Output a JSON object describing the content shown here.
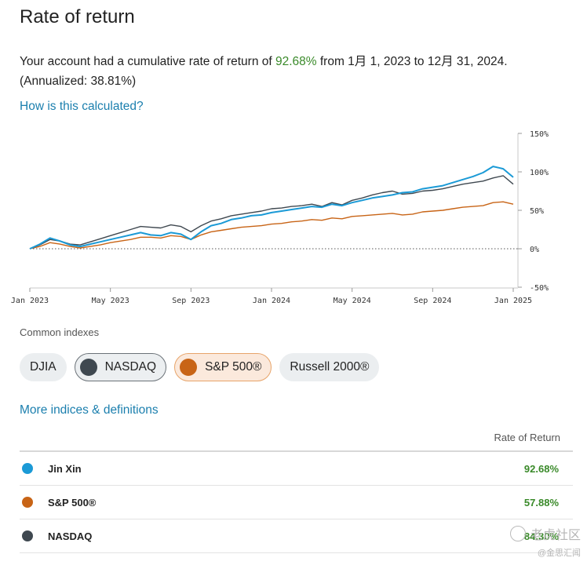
{
  "page": {
    "title": "Rate of return",
    "summary_prefix": "Your account had a cumulative rate of return of ",
    "summary_pct": "92.68%",
    "summary_suffix": " from 1月 1, 2023 to 12月 31, 2024.",
    "annualized": "(Annualized: 38.81%)",
    "how_link": "How is this calculated?"
  },
  "chart_data": {
    "type": "line",
    "x_tick_labels": [
      "Jan 2023",
      "May 2023",
      "Sep 2023",
      "Jan 2024",
      "May 2024",
      "Sep 2024",
      "Jan 2025"
    ],
    "y_tick_labels": [
      "150%",
      "100%",
      "50%",
      "0%",
      "-50%"
    ],
    "y_ticks": [
      150,
      100,
      50,
      0,
      -50
    ],
    "ylim": [
      -50,
      150
    ],
    "xlim": [
      0,
      24
    ],
    "baseline_dotted": 0,
    "series": [
      {
        "name": "Jin Xin",
        "color": "#1b9ad6",
        "x": [
          0,
          0.5,
          1,
          1.5,
          2,
          2.5,
          3,
          3.5,
          4,
          4.5,
          5,
          5.5,
          6,
          6.5,
          7,
          7.5,
          8,
          8.5,
          9,
          9.5,
          10,
          10.5,
          11,
          11.5,
          12,
          12.5,
          13,
          13.5,
          14,
          14.5,
          15,
          15.5,
          16,
          16.5,
          17,
          17.5,
          18,
          18.5,
          19,
          19.5,
          20,
          20.5,
          21,
          21.5,
          22,
          22.5,
          23,
          23.5,
          24
        ],
        "y": [
          0,
          6,
          14,
          10,
          5,
          3,
          6,
          9,
          12,
          15,
          18,
          21,
          18,
          17,
          21,
          19,
          12,
          22,
          30,
          33,
          38,
          40,
          43,
          44,
          47,
          49,
          51,
          53,
          55,
          54,
          58,
          56,
          60,
          63,
          66,
          68,
          70,
          73,
          74,
          78,
          80,
          82,
          86,
          90,
          94,
          99,
          107,
          104,
          93
        ]
      },
      {
        "name": "S&P 500®",
        "color": "#c86416",
        "x": [
          0,
          0.5,
          1,
          1.5,
          2,
          2.5,
          3,
          3.5,
          4,
          4.5,
          5,
          5.5,
          6,
          6.5,
          7,
          7.5,
          8,
          8.5,
          9,
          9.5,
          10,
          10.5,
          11,
          11.5,
          12,
          12.5,
          13,
          13.5,
          14,
          14.5,
          15,
          15.5,
          16,
          16.5,
          17,
          17.5,
          18,
          18.5,
          19,
          19.5,
          20,
          20.5,
          21,
          21.5,
          22,
          22.5,
          23,
          23.5,
          24
        ],
        "y": [
          0,
          3,
          8,
          6,
          3,
          1,
          3,
          5,
          8,
          10,
          12,
          15,
          15,
          14,
          17,
          16,
          12,
          18,
          22,
          24,
          26,
          28,
          29,
          30,
          32,
          33,
          35,
          36,
          38,
          37,
          40,
          39,
          42,
          43,
          44,
          45,
          46,
          44,
          45,
          48,
          49,
          50,
          52,
          54,
          55,
          56,
          60,
          61,
          58
        ]
      },
      {
        "name": "NASDAQ",
        "color": "#3f4850",
        "x": [
          0,
          0.5,
          1,
          1.5,
          2,
          2.5,
          3,
          3.5,
          4,
          4.5,
          5,
          5.5,
          6,
          6.5,
          7,
          7.5,
          8,
          8.5,
          9,
          9.5,
          10,
          10.5,
          11,
          11.5,
          12,
          12.5,
          13,
          13.5,
          14,
          14.5,
          15,
          15.5,
          16,
          16.5,
          17,
          17.5,
          18,
          18.5,
          19,
          19.5,
          20,
          20.5,
          21,
          21.5,
          22,
          22.5,
          23,
          23.5,
          24
        ],
        "y": [
          0,
          5,
          12,
          10,
          6,
          5,
          9,
          13,
          17,
          21,
          25,
          29,
          28,
          27,
          31,
          29,
          22,
          30,
          36,
          39,
          43,
          45,
          47,
          49,
          52,
          53,
          55,
          56,
          58,
          55,
          60,
          57,
          63,
          66,
          70,
          73,
          75,
          71,
          72,
          75,
          76,
          78,
          81,
          84,
          86,
          88,
          92,
          95,
          84
        ]
      }
    ]
  },
  "indexes": {
    "label": "Common indexes",
    "chips": [
      {
        "label": "DJIA"
      },
      {
        "label": "NASDAQ",
        "color": "#3f4850"
      },
      {
        "label": "S&P 500®",
        "color": "#c86416"
      },
      {
        "label": "Russell 2000®"
      }
    ],
    "more_link": "More indices & definitions"
  },
  "table": {
    "header": "Rate of Return",
    "rows": [
      {
        "name": "Jin Xin",
        "value": "92.68%",
        "color": "#1b9ad6"
      },
      {
        "name": "S&P 500®",
        "value": "57.88%",
        "color": "#c86416"
      },
      {
        "name": "NASDAQ",
        "value": "84.30%",
        "color": "#3f4850"
      }
    ]
  },
  "watermark": {
    "top": "老虎社区",
    "bottom": "@金思汇闻"
  }
}
